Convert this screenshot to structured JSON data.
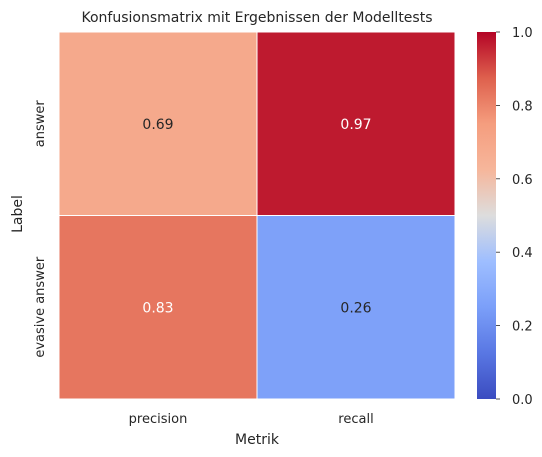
{
  "chart_data": {
    "type": "heatmap",
    "title": "Konfusionsmatrix mit Ergebnissen der Modelltests",
    "xlabel": "Metrik",
    "ylabel": "Label",
    "x_categories": [
      "precision",
      "recall"
    ],
    "y_categories": [
      "answer",
      "evasive answer"
    ],
    "values": [
      [
        0.69,
        0.97
      ],
      [
        0.83,
        0.26
      ]
    ],
    "value_labels": [
      [
        "0.69",
        "0.97"
      ],
      [
        "0.83",
        "0.26"
      ]
    ],
    "colormap": "coolwarm",
    "vmin": 0.0,
    "vmax": 1.0,
    "colorbar_ticks": [
      "0.0",
      "0.2",
      "0.4",
      "0.6",
      "0.8",
      "1.0"
    ],
    "colorbar_tick_values": [
      0.0,
      0.2,
      0.4,
      0.6,
      0.8,
      1.0
    ],
    "grid": false,
    "colors": {
      "cell_border": "#ffffff",
      "text_dark": "#262626",
      "text_light": "#ffffff"
    }
  }
}
